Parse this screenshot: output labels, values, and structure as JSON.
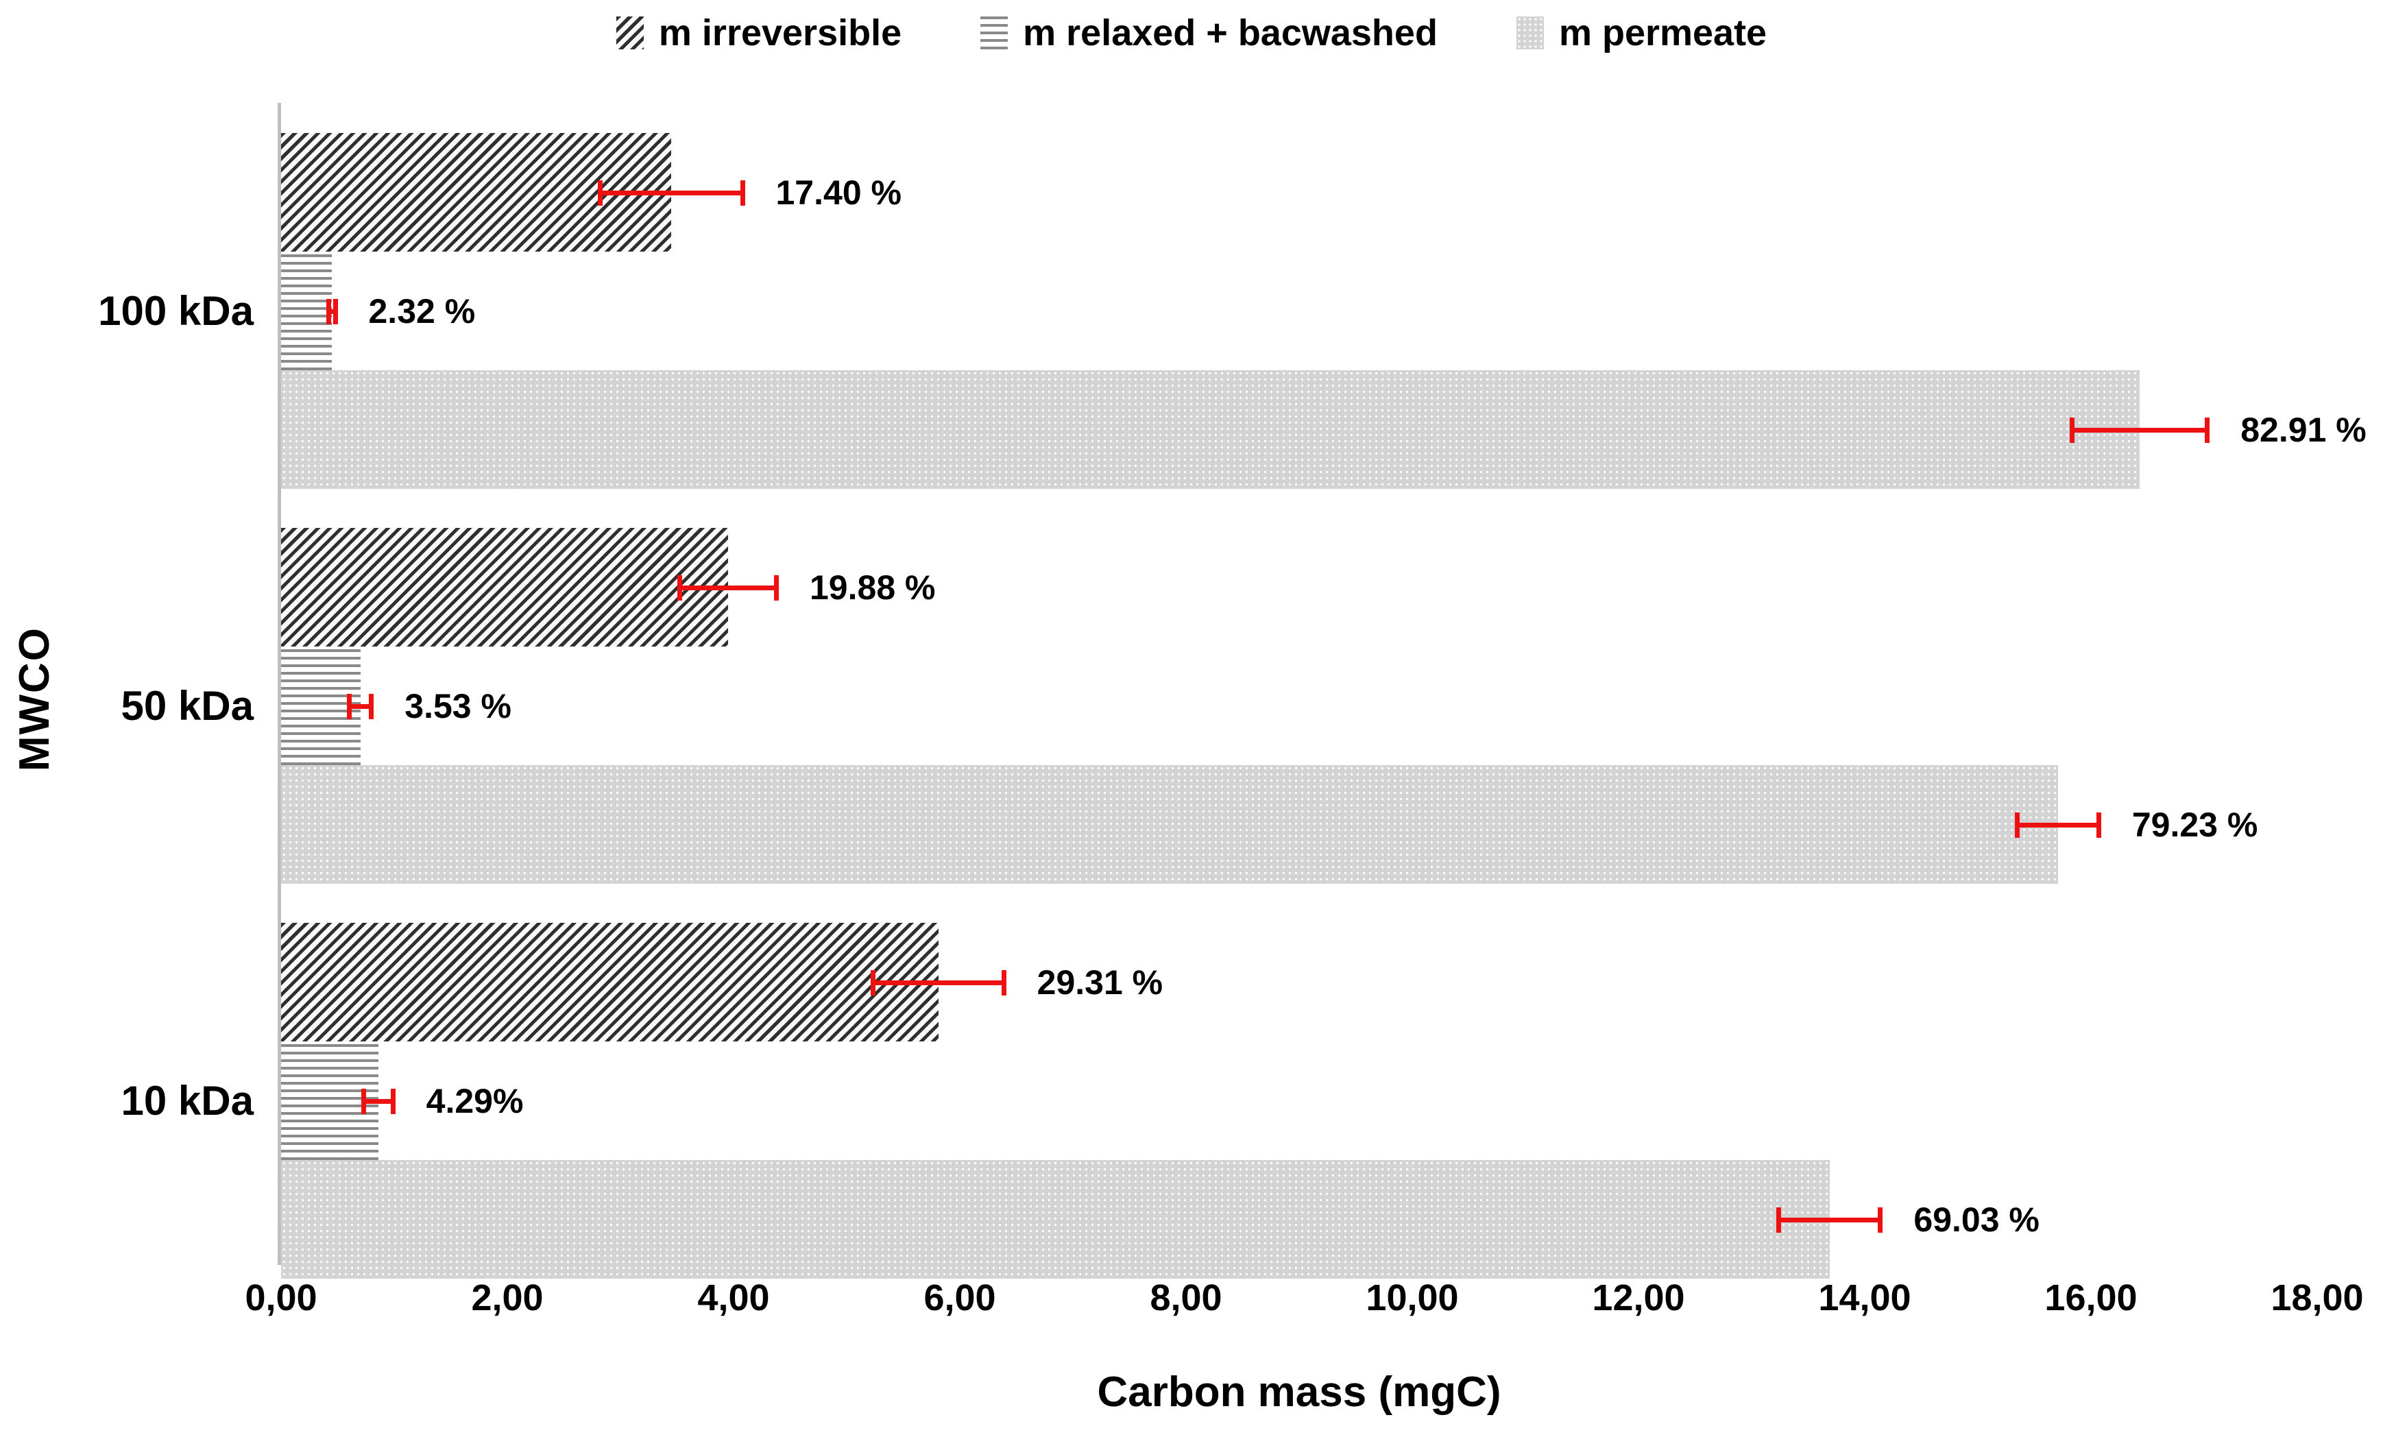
{
  "page": {
    "background": "#FFFFFF"
  },
  "chart_data": {
    "type": "bar",
    "orientation": "horizontal",
    "title": "",
    "xlabel": "Carbon mass (mgC)",
    "ylabel": "MWCO",
    "xlim": [
      0,
      18
    ],
    "grid": false,
    "legend_position": "top-center",
    "axis_line_color": "#BFBFBF",
    "error_bar_color": "#EE1111",
    "text_color": "#000000",
    "xticks": [
      {
        "label": "0,00",
        "value": 0
      },
      {
        "label": "2,00",
        "value": 2
      },
      {
        "label": "4,00",
        "value": 4
      },
      {
        "label": "6,00",
        "value": 6
      },
      {
        "label": "8,00",
        "value": 8
      },
      {
        "label": "10,00",
        "value": 10
      },
      {
        "label": "12,00",
        "value": 12
      },
      {
        "label": "14,00",
        "value": 14
      },
      {
        "label": "16,00",
        "value": 16
      },
      {
        "label": "18,00",
        "value": 18
      }
    ],
    "categories": [
      "100 kDa",
      "50 kDa",
      "10 kDa"
    ],
    "series": [
      {
        "name": "m irreversible",
        "slug": "irreversible",
        "pattern": "diagonal-hatch",
        "pattern_colors": [
          "#2F2F2F",
          "#FAFAFA"
        ],
        "values": [
          3.45,
          3.95,
          5.81
        ],
        "errors": [
          0.65,
          0.45,
          0.6
        ],
        "labels": [
          "17.40 %",
          "19.88 %",
          "29.31 %"
        ]
      },
      {
        "name": "m relaxed + bacwashed",
        "slug": "relaxed-backwashed",
        "pattern": "horizontal-lines",
        "pattern_colors": [
          "#8A8A8A",
          "#FFFFFF"
        ],
        "values": [
          0.45,
          0.7,
          0.86
        ],
        "errors": [
          0.05,
          0.12,
          0.15
        ],
        "labels": [
          "2.32 %",
          "3.53 %",
          "4.29%"
        ]
      },
      {
        "name": "m permeate",
        "slug": "permeate",
        "pattern": "dotted-light",
        "pattern_colors": [
          "#D3D3D3",
          "#FFFFFF"
        ],
        "values": [
          16.43,
          15.71,
          13.69
        ],
        "errors": [
          0.62,
          0.38,
          0.47
        ],
        "labels": [
          "82.91 %",
          "79.23 %",
          "69.03 %"
        ]
      }
    ]
  }
}
